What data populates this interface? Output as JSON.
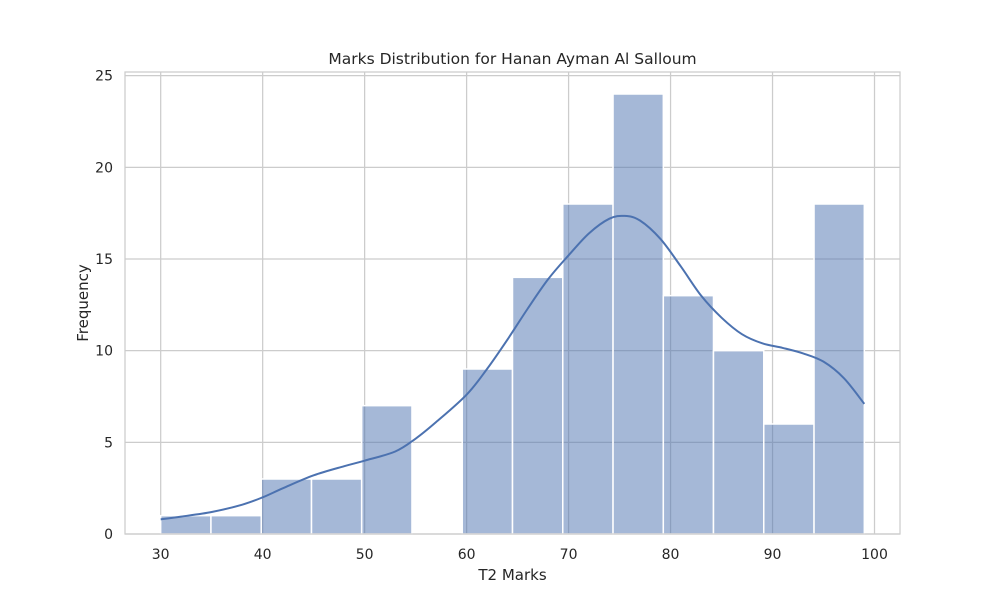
{
  "chart_data": {
    "type": "bar",
    "title": "Marks Distribution for Hanan Ayman Al Salloum",
    "xlabel": "T2 Marks",
    "ylabel": "Frequency",
    "xlim": [
      26.5,
      102.5
    ],
    "ylim": [
      0,
      25.2
    ],
    "xticks": [
      "30",
      "40",
      "50",
      "60",
      "70",
      "80",
      "90",
      "100"
    ],
    "yticks": [
      "0",
      "5",
      "10",
      "15",
      "20",
      "25"
    ],
    "grid": true,
    "bar_color": "#4c72b0",
    "bar_alpha": 0.5,
    "bins": [
      {
        "x0": 30,
        "x1": 34.93,
        "count": 1
      },
      {
        "x0": 34.93,
        "x1": 39.86,
        "count": 1
      },
      {
        "x0": 39.86,
        "x1": 44.79,
        "count": 3
      },
      {
        "x0": 44.79,
        "x1": 49.71,
        "count": 3
      },
      {
        "x0": 49.71,
        "x1": 54.64,
        "count": 7
      },
      {
        "x0": 54.64,
        "x1": 59.57,
        "count": 0
      },
      {
        "x0": 59.57,
        "x1": 64.5,
        "count": 9
      },
      {
        "x0": 64.5,
        "x1": 69.43,
        "count": 14
      },
      {
        "x0": 69.43,
        "x1": 74.36,
        "count": 18
      },
      {
        "x0": 74.36,
        "x1": 79.29,
        "count": 24
      },
      {
        "x0": 79.29,
        "x1": 84.21,
        "count": 13
      },
      {
        "x0": 84.21,
        "x1": 89.14,
        "count": 10
      },
      {
        "x0": 89.14,
        "x1": 94.07,
        "count": 6
      },
      {
        "x0": 94.07,
        "x1": 99,
        "count": 18
      }
    ],
    "kde": {
      "color": "#4c72b0",
      "points": [
        [
          30,
          0.8
        ],
        [
          32,
          0.95
        ],
        [
          35,
          1.2
        ],
        [
          38,
          1.6
        ],
        [
          40,
          2.0
        ],
        [
          42,
          2.5
        ],
        [
          45,
          3.2
        ],
        [
          48,
          3.7
        ],
        [
          50,
          4.0
        ],
        [
          53,
          4.5
        ],
        [
          55,
          5.2
        ],
        [
          57,
          6.1
        ],
        [
          60,
          7.6
        ],
        [
          62,
          9.0
        ],
        [
          64,
          10.6
        ],
        [
          66,
          12.3
        ],
        [
          68,
          13.9
        ],
        [
          70,
          15.2
        ],
        [
          72,
          16.4
        ],
        [
          74,
          17.2
        ],
        [
          75.5,
          17.35
        ],
        [
          77,
          17.1
        ],
        [
          79,
          16.1
        ],
        [
          81,
          14.6
        ],
        [
          83,
          13.0
        ],
        [
          85,
          11.8
        ],
        [
          87,
          10.9
        ],
        [
          89,
          10.4
        ],
        [
          91,
          10.15
        ],
        [
          93,
          9.85
        ],
        [
          95,
          9.4
        ],
        [
          97,
          8.5
        ],
        [
          99,
          7.1
        ]
      ]
    }
  }
}
